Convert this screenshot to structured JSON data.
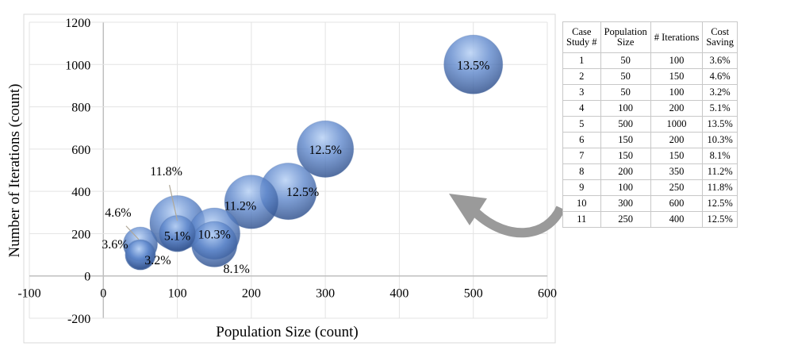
{
  "chart_data": {
    "type": "bubble",
    "xlabel": "Population Size (count)",
    "ylabel": "Number of Iterations (count)",
    "xlim": [
      -100,
      600
    ],
    "ylim": [
      -200,
      1200
    ],
    "xticks": [
      -100,
      0,
      100,
      200,
      300,
      400,
      500,
      600
    ],
    "yticks": [
      -200,
      0,
      200,
      400,
      600,
      800,
      1000,
      1200
    ],
    "grid": true,
    "bubble_color": "#5b84c8",
    "points": [
      {
        "case": 1,
        "x": 50,
        "y": 100,
        "size": 3.6,
        "label": "3.6%"
      },
      {
        "case": 2,
        "x": 50,
        "y": 150,
        "size": 4.6,
        "label": "4.6%"
      },
      {
        "case": 3,
        "x": 50,
        "y": 100,
        "size": 3.2,
        "label": "3.2%"
      },
      {
        "case": 4,
        "x": 100,
        "y": 200,
        "size": 5.1,
        "label": "5.1%"
      },
      {
        "case": 5,
        "x": 500,
        "y": 1000,
        "size": 13.5,
        "label": "13.5%"
      },
      {
        "case": 6,
        "x": 150,
        "y": 200,
        "size": 10.3,
        "label": "10.3%"
      },
      {
        "case": 7,
        "x": 150,
        "y": 150,
        "size": 8.1,
        "label": "8.1%"
      },
      {
        "case": 8,
        "x": 200,
        "y": 350,
        "size": 11.2,
        "label": "11.2%"
      },
      {
        "case": 9,
        "x": 100,
        "y": 250,
        "size": 11.8,
        "label": "11.8%"
      },
      {
        "case": 10,
        "x": 300,
        "y": 600,
        "size": 12.5,
        "label": "12.5%"
      },
      {
        "case": 11,
        "x": 250,
        "y": 400,
        "size": 12.5,
        "label": "12.5%"
      }
    ]
  },
  "table": {
    "headers": [
      [
        "Case",
        "Study #"
      ],
      [
        "Population",
        "Size"
      ],
      [
        "# Iterations"
      ],
      [
        "Cost",
        "Saving"
      ]
    ],
    "rows": [
      [
        "1",
        "50",
        "100",
        "3.6%"
      ],
      [
        "2",
        "50",
        "150",
        "4.6%"
      ],
      [
        "3",
        "50",
        "100",
        "3.2%"
      ],
      [
        "4",
        "100",
        "200",
        "5.1%"
      ],
      [
        "5",
        "500",
        "1000",
        "13.5%"
      ],
      [
        "6",
        "150",
        "200",
        "10.3%"
      ],
      [
        "7",
        "150",
        "150",
        "8.1%"
      ],
      [
        "8",
        "200",
        "350",
        "11.2%"
      ],
      [
        "9",
        "100",
        "250",
        "11.8%"
      ],
      [
        "10",
        "300",
        "600",
        "12.5%"
      ],
      [
        "11",
        "250",
        "400",
        "12.5%"
      ]
    ]
  }
}
